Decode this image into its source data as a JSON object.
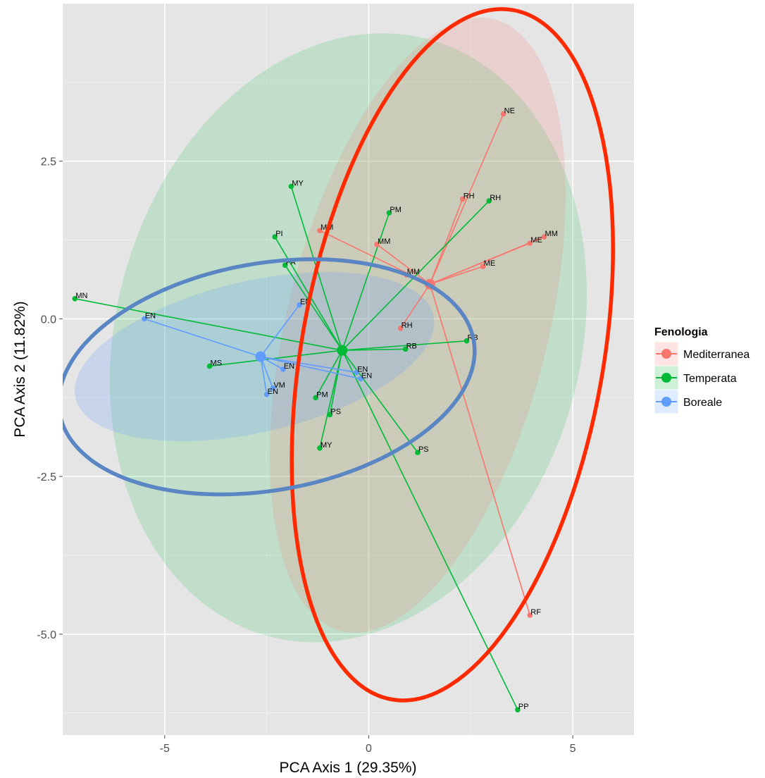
{
  "chart_data": {
    "type": "scatter",
    "title": "",
    "xlabel": "PCA Axis 1 (29.35%)",
    "ylabel": "PCA Axis 2 (11.82%)",
    "xlim": [
      -7.5,
      6.5
    ],
    "ylim": [
      -6.6,
      5.0
    ],
    "x_ticks": [
      -5,
      0,
      5
    ],
    "x_tick_labels": [
      "-5",
      "0",
      "5"
    ],
    "y_ticks": [
      2.5,
      0.0,
      -2.5,
      -5.0
    ],
    "y_tick_labels": [
      "2.5",
      "0.0",
      "-2.5",
      "-5.0"
    ],
    "grid": true,
    "legend": {
      "title": "Fenologia",
      "position": "right",
      "entries": [
        "Mediterranea",
        "Temperata",
        "Boreale"
      ]
    },
    "colors": {
      "Mediterranea": "#f8766d",
      "Temperata": "#00ba38",
      "Boreale": "#619cff",
      "red_ellipse": "#ff2a00",
      "blue_ellipse": "#5b86c4",
      "panel_background": "#e5e5e5",
      "grid": "#ffffff"
    },
    "series": [
      {
        "name": "Mediterranea",
        "centroid": [
          1.5,
          0.55
        ],
        "confidence_ellipse": {
          "center": [
            1.2,
            -0.1
          ],
          "rx": 3.2,
          "ry": 5.0,
          "angle_deg": 14
        },
        "points": [
          {
            "x": 3.3,
            "y": 3.25,
            "label": "NE"
          },
          {
            "x": 2.3,
            "y": 1.9,
            "label": "RH"
          },
          {
            "x": -1.2,
            "y": 1.4,
            "label": "MM"
          },
          {
            "x": 0.2,
            "y": 1.18,
            "label": "MM"
          },
          {
            "x": 3.95,
            "y": 1.2,
            "label": "ME"
          },
          {
            "x": 4.3,
            "y": 1.3,
            "label": "MM"
          },
          {
            "x": 2.8,
            "y": 0.83,
            "label": "ME"
          },
          {
            "x": 0.92,
            "y": 0.7,
            "label": "MM"
          },
          {
            "x": 0.78,
            "y": -0.15,
            "label": "RH"
          },
          {
            "x": 3.95,
            "y": -4.7,
            "label": "RF"
          }
        ]
      },
      {
        "name": "Temperata",
        "centroid": [
          -0.65,
          -0.5
        ],
        "confidence_ellipse": {
          "center": [
            -0.5,
            -0.3
          ],
          "rx": 5.7,
          "ry": 4.9,
          "angle_deg": 15
        },
        "points": [
          {
            "x": -1.9,
            "y": 2.1,
            "label": "MY"
          },
          {
            "x": 0.5,
            "y": 1.68,
            "label": "PM"
          },
          {
            "x": 2.95,
            "y": 1.87,
            "label": "RH"
          },
          {
            "x": -2.3,
            "y": 1.3,
            "label": "PI"
          },
          {
            "x": -2.05,
            "y": 0.85,
            "label": "PA"
          },
          {
            "x": -7.2,
            "y": 0.32,
            "label": "MN"
          },
          {
            "x": -3.9,
            "y": -0.75,
            "label": "MS"
          },
          {
            "x": 0.9,
            "y": -0.48,
            "label": "RB"
          },
          {
            "x": 2.4,
            "y": -0.35,
            "label": "RB"
          },
          {
            "x": -1.3,
            "y": -1.25,
            "label": "PM"
          },
          {
            "x": -0.95,
            "y": -1.52,
            "label": "PS"
          },
          {
            "x": -1.2,
            "y": -2.05,
            "label": "MY"
          },
          {
            "x": 1.2,
            "y": -2.12,
            "label": "PS"
          },
          {
            "x": 3.65,
            "y": -6.2,
            "label": "PP"
          }
        ]
      },
      {
        "name": "Boreale",
        "centroid": [
          -2.65,
          -0.6
        ],
        "confidence_ellipse": {
          "center": [
            -2.8,
            -0.6
          ],
          "rx": 4.5,
          "ry": 1.2,
          "angle_deg": -13
        },
        "points": [
          {
            "x": -5.5,
            "y": 0.0,
            "label": "EN"
          },
          {
            "x": -1.7,
            "y": 0.22,
            "label": "EN"
          },
          {
            "x": -2.1,
            "y": -0.8,
            "label": "EN"
          },
          {
            "x": -2.35,
            "y": -1.1,
            "label": "VM"
          },
          {
            "x": -2.5,
            "y": -1.2,
            "label": "EN"
          },
          {
            "x": -0.3,
            "y": -0.85,
            "label": "EN"
          },
          {
            "x": -0.2,
            "y": -0.95,
            "label": "EN"
          }
        ]
      }
    ],
    "annotations": [
      {
        "type": "hand-drawn-ellipse",
        "color": "red",
        "center": [
          2.05,
          -0.57
        ],
        "rx": 3.7,
        "ry": 5.55,
        "angle_deg": 10
      },
      {
        "type": "hand-drawn-ellipse",
        "color": "blue",
        "center": [
          -2.5,
          -0.92
        ],
        "rx": 5.15,
        "ry": 1.8,
        "angle_deg": -10
      }
    ]
  }
}
